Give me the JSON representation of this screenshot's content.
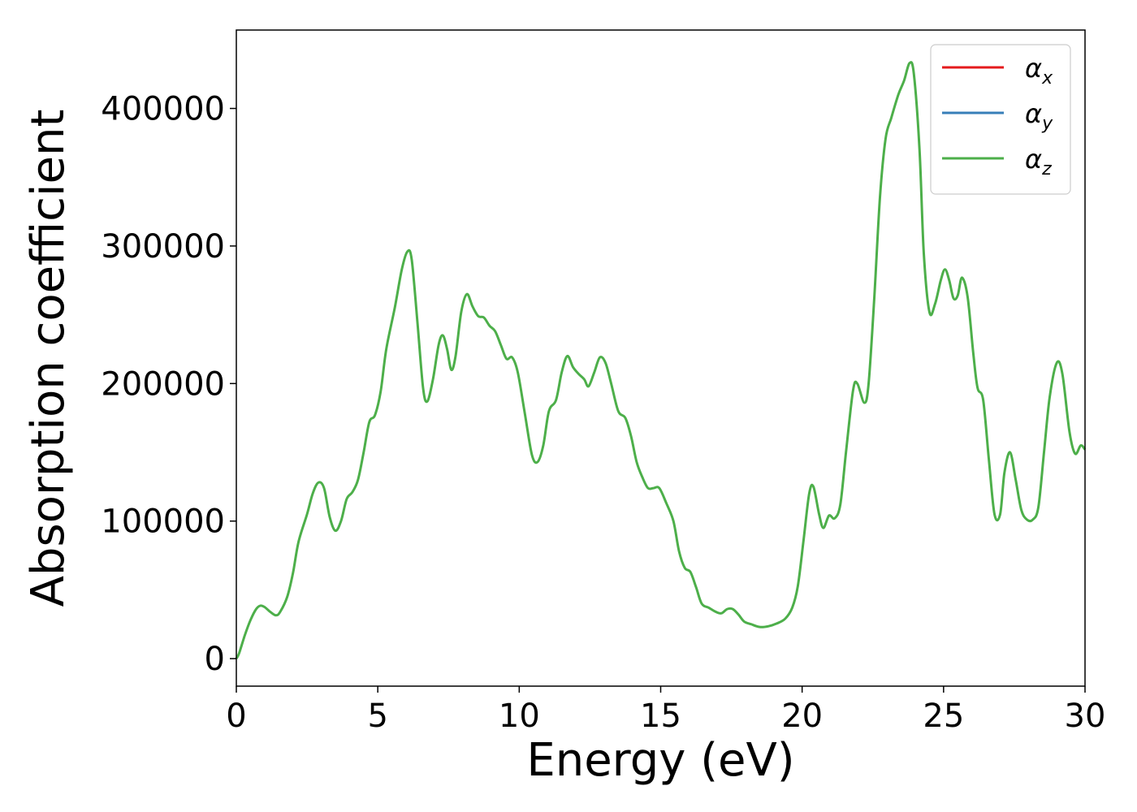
{
  "chart_data": {
    "type": "line",
    "title": "",
    "xlabel": "Energy (eV)",
    "ylabel": "Absorption coefficient",
    "xlim": [
      0,
      30
    ],
    "ylim": [
      -20000,
      457000
    ],
    "xticks": [
      0,
      5,
      10,
      15,
      20,
      25,
      30
    ],
    "yticks": [
      0,
      100000,
      200000,
      300000,
      400000
    ],
    "grid": false,
    "legend_position": "top-right",
    "legend": [
      {
        "symbol": "α",
        "sub": "x",
        "color": "#e41a1c"
      },
      {
        "symbol": "α",
        "sub": "y",
        "color": "#377eb8"
      },
      {
        "symbol": "α",
        "sub": "z",
        "color": "#4daf4a"
      }
    ],
    "series": [
      {
        "color": "#4daf4a",
        "points": [
          [
            0,
            0
          ],
          [
            0.1,
            4000
          ],
          [
            0.3,
            17000
          ],
          [
            0.5,
            28000
          ],
          [
            0.7,
            36000
          ],
          [
            0.85,
            38500
          ],
          [
            1.0,
            37500
          ],
          [
            1.2,
            34000
          ],
          [
            1.4,
            31500
          ],
          [
            1.55,
            34000
          ],
          [
            1.8,
            45000
          ],
          [
            2.0,
            62000
          ],
          [
            2.2,
            85000
          ],
          [
            2.5,
            105000
          ],
          [
            2.7,
            120000
          ],
          [
            2.9,
            128000
          ],
          [
            3.1,
            124000
          ],
          [
            3.3,
            103000
          ],
          [
            3.5,
            93000
          ],
          [
            3.7,
            100000
          ],
          [
            3.9,
            116000
          ],
          [
            4.1,
            121000
          ],
          [
            4.3,
            130000
          ],
          [
            4.5,
            150000
          ],
          [
            4.7,
            172000
          ],
          [
            4.9,
            177000
          ],
          [
            5.1,
            194000
          ],
          [
            5.3,
            225000
          ],
          [
            5.6,
            255000
          ],
          [
            5.85,
            283000
          ],
          [
            6.05,
            296000
          ],
          [
            6.2,
            290000
          ],
          [
            6.4,
            245000
          ],
          [
            6.6,
            197000
          ],
          [
            6.75,
            187000
          ],
          [
            6.95,
            203000
          ],
          [
            7.15,
            228000
          ],
          [
            7.3,
            235000
          ],
          [
            7.45,
            225000
          ],
          [
            7.6,
            210000
          ],
          [
            7.75,
            220000
          ],
          [
            7.95,
            252000
          ],
          [
            8.15,
            265000
          ],
          [
            8.35,
            256000
          ],
          [
            8.55,
            249000
          ],
          [
            8.75,
            248000
          ],
          [
            8.95,
            242000
          ],
          [
            9.15,
            238000
          ],
          [
            9.35,
            228000
          ],
          [
            9.55,
            218000
          ],
          [
            9.75,
            219000
          ],
          [
            9.95,
            208000
          ],
          [
            10.2,
            178000
          ],
          [
            10.45,
            148000
          ],
          [
            10.65,
            143000
          ],
          [
            10.85,
            155000
          ],
          [
            11.05,
            180000
          ],
          [
            11.3,
            188000
          ],
          [
            11.5,
            208000
          ],
          [
            11.7,
            220000
          ],
          [
            11.9,
            212000
          ],
          [
            12.1,
            207000
          ],
          [
            12.3,
            203000
          ],
          [
            12.45,
            198000
          ],
          [
            12.65,
            208000
          ],
          [
            12.85,
            219000
          ],
          [
            13.05,
            215000
          ],
          [
            13.25,
            200000
          ],
          [
            13.5,
            180000
          ],
          [
            13.75,
            175000
          ],
          [
            13.95,
            162000
          ],
          [
            14.15,
            143000
          ],
          [
            14.35,
            132000
          ],
          [
            14.55,
            124000
          ],
          [
            14.75,
            124000
          ],
          [
            14.95,
            124000
          ],
          [
            15.2,
            113000
          ],
          [
            15.45,
            100000
          ],
          [
            15.65,
            78000
          ],
          [
            15.85,
            66000
          ],
          [
            16.05,
            63000
          ],
          [
            16.25,
            52000
          ],
          [
            16.45,
            40000
          ],
          [
            16.7,
            37000
          ],
          [
            16.95,
            34000
          ],
          [
            17.15,
            33000
          ],
          [
            17.35,
            36000
          ],
          [
            17.55,
            36000
          ],
          [
            17.75,
            32000
          ],
          [
            17.95,
            27000
          ],
          [
            18.2,
            25000
          ],
          [
            18.5,
            23000
          ],
          [
            18.8,
            23500
          ],
          [
            19.1,
            25500
          ],
          [
            19.4,
            29000
          ],
          [
            19.65,
            37000
          ],
          [
            19.85,
            53000
          ],
          [
            20.05,
            86000
          ],
          [
            20.25,
            120000
          ],
          [
            20.4,
            125000
          ],
          [
            20.6,
            105000
          ],
          [
            20.75,
            95000
          ],
          [
            20.95,
            104000
          ],
          [
            21.15,
            102000
          ],
          [
            21.35,
            112000
          ],
          [
            21.55,
            150000
          ],
          [
            21.8,
            195000
          ],
          [
            21.95,
            200000
          ],
          [
            22.2,
            186000
          ],
          [
            22.35,
            200000
          ],
          [
            22.55,
            262000
          ],
          [
            22.75,
            335000
          ],
          [
            22.95,
            378000
          ],
          [
            23.15,
            393000
          ],
          [
            23.4,
            410000
          ],
          [
            23.6,
            420000
          ],
          [
            23.8,
            433000
          ],
          [
            23.95,
            425000
          ],
          [
            24.15,
            370000
          ],
          [
            24.3,
            295000
          ],
          [
            24.5,
            252000
          ],
          [
            24.7,
            258000
          ],
          [
            24.9,
            275000
          ],
          [
            25.05,
            283000
          ],
          [
            25.2,
            275000
          ],
          [
            25.35,
            262000
          ],
          [
            25.5,
            264000
          ],
          [
            25.65,
            277000
          ],
          [
            25.85,
            263000
          ],
          [
            26.05,
            222000
          ],
          [
            26.2,
            197000
          ],
          [
            26.4,
            188000
          ],
          [
            26.6,
            145000
          ],
          [
            26.8,
            105000
          ],
          [
            27.0,
            105000
          ],
          [
            27.15,
            135000
          ],
          [
            27.35,
            150000
          ],
          [
            27.55,
            130000
          ],
          [
            27.75,
            108000
          ],
          [
            27.95,
            101000
          ],
          [
            28.15,
            101000
          ],
          [
            28.35,
            110000
          ],
          [
            28.55,
            150000
          ],
          [
            28.75,
            190000
          ],
          [
            29.0,
            215000
          ],
          [
            29.2,
            207000
          ],
          [
            29.45,
            165000
          ],
          [
            29.65,
            149000
          ],
          [
            29.85,
            155000
          ],
          [
            30.0,
            152000
          ]
        ]
      }
    ]
  }
}
